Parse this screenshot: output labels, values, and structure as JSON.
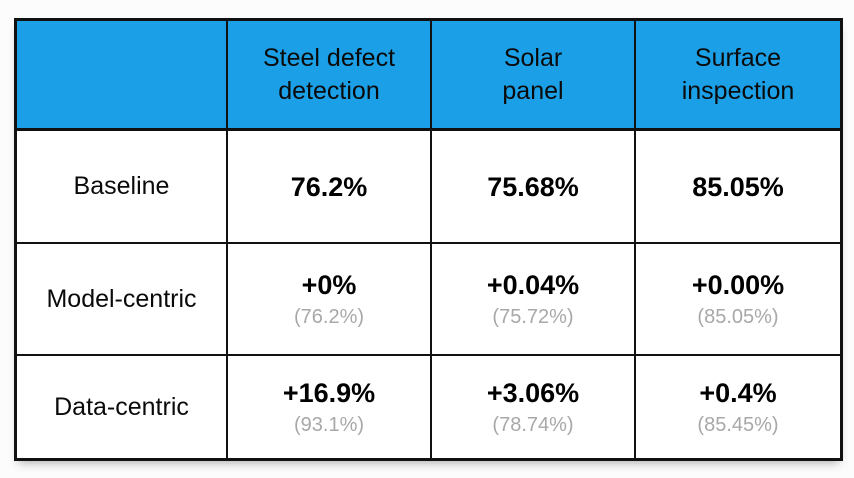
{
  "colors": {
    "header_blue": "#1B9FE6",
    "grid_line": "#111111",
    "value_text": "#000000",
    "sub_text": "#A8A8A8",
    "background": "#FCFCFC"
  },
  "table": {
    "header": {
      "corner": "",
      "columns": [
        {
          "line1": "Steel defect",
          "line2": "detection"
        },
        {
          "line1": "Solar",
          "line2": "panel"
        },
        {
          "line1": "Surface",
          "line2": "inspection"
        }
      ]
    },
    "rows": [
      {
        "label": "Baseline",
        "cells": [
          {
            "value": "76.2%",
            "sub": ""
          },
          {
            "value": "75.68%",
            "sub": ""
          },
          {
            "value": "85.05%",
            "sub": ""
          }
        ]
      },
      {
        "label": "Model-centric",
        "cells": [
          {
            "value": "+0%",
            "sub": "(76.2%)"
          },
          {
            "value": "+0.04%",
            "sub": "(75.72%)"
          },
          {
            "value": "+0.00%",
            "sub": "(85.05%)"
          }
        ]
      },
      {
        "label": "Data-centric",
        "cells": [
          {
            "value": "+16.9%",
            "sub": "(93.1%)"
          },
          {
            "value": "+3.06%",
            "sub": "(78.74%)"
          },
          {
            "value": "+0.4%",
            "sub": "(85.45%)"
          }
        ]
      }
    ]
  },
  "chart_data": {
    "type": "table",
    "columns": [
      "",
      "Steel defect detection",
      "Solar panel",
      "Surface inspection"
    ],
    "rows": [
      {
        "name": "Baseline",
        "absolute_pct": [
          76.2,
          75.68,
          85.05
        ]
      },
      {
        "name": "Model-centric",
        "delta_pct": [
          0,
          0.04,
          0.0
        ],
        "absolute_pct": [
          76.2,
          75.72,
          85.05
        ]
      },
      {
        "name": "Data-centric",
        "delta_pct": [
          16.9,
          3.06,
          0.4
        ],
        "absolute_pct": [
          93.1,
          78.74,
          85.45
        ]
      }
    ]
  }
}
